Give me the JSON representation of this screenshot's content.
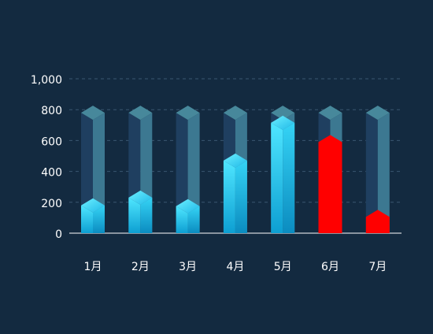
{
  "chart_data": {
    "type": "bar",
    "categories": [
      "1月",
      "2月",
      "3月",
      "4月",
      "5月",
      "6月",
      "7月"
    ],
    "values": [
      180,
      230,
      175,
      470,
      715,
      590,
      105
    ],
    "capacity": [
      780,
      780,
      780,
      780,
      780,
      780,
      780
    ],
    "ylim": [
      0,
      1000
    ],
    "yticks": [
      0,
      200,
      400,
      600,
      800,
      1000
    ],
    "ytick_labels": [
      "0",
      "200",
      "400",
      "600",
      "800",
      "1,000"
    ],
    "grid": true,
    "title": "",
    "xlabel": "",
    "ylabel": "",
    "colors": {
      "background": "#132a40",
      "normal_top": "#4fe6ff",
      "normal_bottom": "#0e9fd0",
      "alert": "#ff0000",
      "alert_values": [
        "6月",
        "7月"
      ],
      "capacity_dark": "#1f3f60",
      "capacity_light": "#3c7891",
      "capacity_cap": "#47889b",
      "grid": "#3a5670",
      "axis_text": "#ffffff"
    }
  }
}
